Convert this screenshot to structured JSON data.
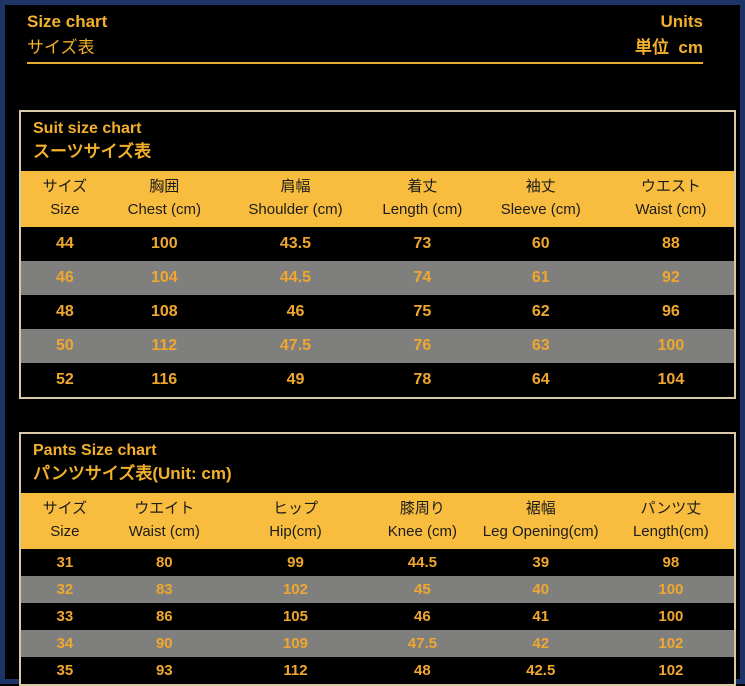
{
  "header": {
    "title_en": "Size chart",
    "title_ja": "サイズ表",
    "units_label": "Units",
    "units_value": "単位  cm"
  },
  "colors": {
    "accent_gold": "#F2B02D",
    "data_gold": "#F0A72F",
    "header_row_bg": "#F8BC3E",
    "alt_row_gray": "#7F7F7D",
    "page_border_blue": "#1D3566",
    "table_border_tan": "#D9C8A6",
    "background": "#000000"
  },
  "suit_table": {
    "title_en": "Suit size chart",
    "title_ja": "スーツサイズ表",
    "columns": [
      {
        "ja": "サイズ",
        "en": "Size"
      },
      {
        "ja": "胸囲",
        "en": "Chest (cm)"
      },
      {
        "ja": "肩幅",
        "en": "Shoulder (cm)"
      },
      {
        "ja": "着丈",
        "en": "Length (cm)"
      },
      {
        "ja": "袖丈",
        "en": "Sleeve (cm)"
      },
      {
        "ja": "ウエスト",
        "en": "Waist (cm)"
      }
    ],
    "rows": [
      [
        "44",
        "100",
        "43.5",
        "73",
        "60",
        "88"
      ],
      [
        "46",
        "104",
        "44.5",
        "74",
        "61",
        "92"
      ],
      [
        "48",
        "108",
        "46",
        "75",
        "62",
        "96"
      ],
      [
        "50",
        "112",
        "47.5",
        "76",
        "63",
        "100"
      ],
      [
        "52",
        "116",
        "49",
        "78",
        "64",
        "104"
      ]
    ]
  },
  "pants_table": {
    "title_en": "Pants Size chart",
    "title_ja": "パンツサイズ表(Unit: cm)",
    "columns": [
      {
        "ja": "サイズ",
        "en": "Size"
      },
      {
        "ja": "ウエイト",
        "en": "Waist (cm)"
      },
      {
        "ja": "ヒップ",
        "en": "Hip(cm)"
      },
      {
        "ja": "膝周り",
        "en": "Knee (cm)"
      },
      {
        "ja": "裾幅",
        "en": "Leg Opening(cm)"
      },
      {
        "ja": "パンツ丈",
        "en": "Length(cm)"
      }
    ],
    "rows": [
      [
        "31",
        "80",
        "99",
        "44.5",
        "39",
        "98"
      ],
      [
        "32",
        "83",
        "102",
        "45",
        "40",
        "100"
      ],
      [
        "33",
        "86",
        "105",
        "46",
        "41",
        "100"
      ],
      [
        "34",
        "90",
        "109",
        "47.5",
        "42",
        "102"
      ],
      [
        "35",
        "93",
        "112",
        "48",
        "42.5",
        "102"
      ]
    ]
  }
}
